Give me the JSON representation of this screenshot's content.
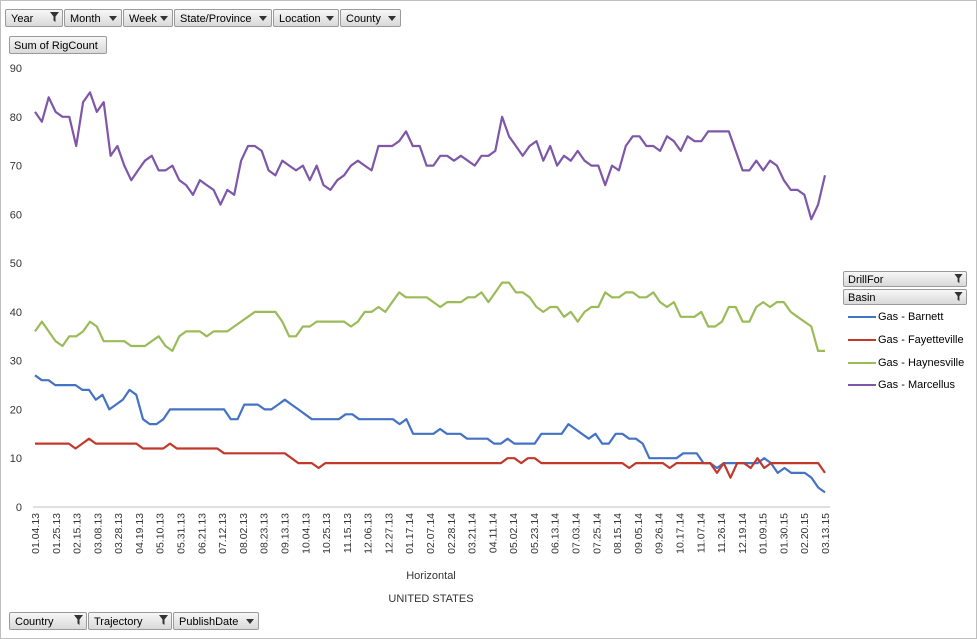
{
  "filters_top": [
    {
      "label": "Year",
      "filtered": true
    },
    {
      "label": "Month",
      "filtered": false
    },
    {
      "label": "Week",
      "filtered": false
    },
    {
      "label": "State/Province",
      "filtered": false
    },
    {
      "label": "Location",
      "filtered": false
    },
    {
      "label": "County",
      "filtered": false
    }
  ],
  "value_field": "Sum of RigCount",
  "legend_fields": [
    {
      "label": "DrillFor",
      "filtered": true
    },
    {
      "label": "Basin",
      "filtered": true
    }
  ],
  "filters_bottom": [
    {
      "label": "Country",
      "filtered": true
    },
    {
      "label": "Trajectory",
      "filtered": true
    },
    {
      "label": "PublishDate",
      "filtered": false
    }
  ],
  "axis_labels": {
    "xlabel": "Horizontal",
    "xlabel2": "UNITED STATES"
  },
  "chart_data": {
    "type": "line",
    "ylim": [
      0,
      90
    ],
    "yticks": [
      0,
      10,
      20,
      30,
      40,
      50,
      60,
      70,
      80,
      90
    ],
    "grid": false,
    "legend_position": "right",
    "xlabel": "Horizontal",
    "xlabel_outer": "UNITED STATES",
    "tick_labels": [
      "01.04.13",
      "01.25.13",
      "02.15.13",
      "03.08.13",
      "03.28.13",
      "04.19.13",
      "05.10.13",
      "05.31.13",
      "06.21.13",
      "07.12.13",
      "08.02.13",
      "08.23.13",
      "09.13.13",
      "10.04.13",
      "10.25.13",
      "11.15.13",
      "12.06.13",
      "12.27.13",
      "01.17.14",
      "02.07.14",
      "02.28.14",
      "03.21.14",
      "04.11.14",
      "05.02.14",
      "05.23.14",
      "06.13.14",
      "07.03.14",
      "07.25.14",
      "08.15.14",
      "09.05.14",
      "09.26.14",
      "10.17.14",
      "11.07.14",
      "11.26.14",
      "12.19.14",
      "01.09.15",
      "01.30.15",
      "02.20.15",
      "03.13.15"
    ],
    "series": [
      {
        "name": "Gas - Barnett",
        "color": "#4472c4",
        "values": [
          27,
          26,
          26,
          25,
          25,
          25,
          25,
          24,
          24,
          22,
          23,
          20,
          21,
          22,
          24,
          23,
          18,
          17,
          17,
          18,
          20,
          20,
          20,
          20,
          20,
          20,
          20,
          20,
          20,
          18,
          18,
          21,
          21,
          21,
          20,
          20,
          21,
          22,
          21,
          20,
          19,
          18,
          18,
          18,
          18,
          18,
          19,
          19,
          18,
          18,
          18,
          18,
          18,
          18,
          17,
          18,
          15,
          15,
          15,
          15,
          16,
          15,
          15,
          15,
          14,
          14,
          14,
          14,
          13,
          13,
          14,
          13,
          13,
          13,
          13,
          15,
          15,
          15,
          15,
          17,
          16,
          15,
          14,
          15,
          13,
          13,
          15,
          15,
          14,
          14,
          13,
          10,
          10,
          10,
          10,
          10,
          11,
          11,
          11,
          9,
          9,
          8,
          9,
          9,
          9,
          9,
          9,
          9,
          10,
          9,
          7,
          8,
          7,
          7,
          7,
          6,
          4,
          3
        ]
      },
      {
        "name": "Gas - Fayetteville",
        "color": "#c0392b",
        "values": [
          13,
          13,
          13,
          13,
          13,
          13,
          12,
          13,
          14,
          13,
          13,
          13,
          13,
          13,
          13,
          13,
          12,
          12,
          12,
          12,
          13,
          12,
          12,
          12,
          12,
          12,
          12,
          12,
          11,
          11,
          11,
          11,
          11,
          11,
          11,
          11,
          11,
          11,
          10,
          9,
          9,
          9,
          8,
          9,
          9,
          9,
          9,
          9,
          9,
          9,
          9,
          9,
          9,
          9,
          9,
          9,
          9,
          9,
          9,
          9,
          9,
          9,
          9,
          9,
          9,
          9,
          9,
          9,
          9,
          9,
          10,
          10,
          9,
          10,
          10,
          9,
          9,
          9,
          9,
          9,
          9,
          9,
          9,
          9,
          9,
          9,
          9,
          9,
          8,
          9,
          9,
          9,
          9,
          9,
          8,
          9,
          9,
          9,
          9,
          9,
          9,
          7,
          9,
          6,
          9,
          9,
          8,
          10,
          8,
          9,
          9,
          9,
          9,
          9,
          9,
          9,
          9,
          7
        ]
      },
      {
        "name": "Gas - Haynesville",
        "color": "#9bbb59",
        "values": [
          36,
          38,
          36,
          34,
          33,
          35,
          35,
          36,
          38,
          37,
          34,
          34,
          34,
          34,
          33,
          33,
          33,
          34,
          35,
          33,
          32,
          35,
          36,
          36,
          36,
          35,
          36,
          36,
          36,
          37,
          38,
          39,
          40,
          40,
          40,
          40,
          38,
          35,
          35,
          37,
          37,
          38,
          38,
          38,
          38,
          38,
          37,
          38,
          40,
          40,
          41,
          40,
          42,
          44,
          43,
          43,
          43,
          43,
          42,
          41,
          42,
          42,
          42,
          43,
          43,
          44,
          42,
          44,
          46,
          46,
          44,
          44,
          43,
          41,
          40,
          41,
          41,
          39,
          40,
          38,
          40,
          41,
          41,
          44,
          43,
          43,
          44,
          44,
          43,
          43,
          44,
          42,
          41,
          42,
          39,
          39,
          39,
          40,
          37,
          37,
          38,
          41,
          41,
          38,
          38,
          41,
          42,
          41,
          42,
          42,
          40,
          39,
          38,
          37,
          32,
          32
        ]
      },
      {
        "name": "Gas - Marcellus",
        "color": "#7e57a8",
        "values": [
          81,
          79,
          84,
          81,
          80,
          80,
          74,
          83,
          85,
          81,
          83,
          72,
          74,
          70,
          67,
          69,
          71,
          72,
          69,
          69,
          70,
          67,
          66,
          64,
          67,
          66,
          65,
          62,
          65,
          64,
          71,
          74,
          74,
          73,
          69,
          68,
          71,
          70,
          69,
          70,
          67,
          70,
          66,
          65,
          67,
          68,
          70,
          71,
          70,
          69,
          74,
          74,
          74,
          75,
          77,
          74,
          74,
          70,
          70,
          72,
          72,
          71,
          72,
          71,
          70,
          72,
          72,
          73,
          80,
          76,
          74,
          72,
          74,
          75,
          71,
          74,
          70,
          72,
          71,
          73,
          71,
          70,
          70,
          66,
          70,
          69,
          74,
          76,
          76,
          74,
          74,
          73,
          76,
          75,
          73,
          76,
          75,
          75,
          77,
          77,
          77,
          77,
          73,
          69,
          69,
          71,
          69,
          71,
          70,
          67,
          65,
          65,
          64,
          59,
          62,
          68
        ]
      }
    ]
  }
}
